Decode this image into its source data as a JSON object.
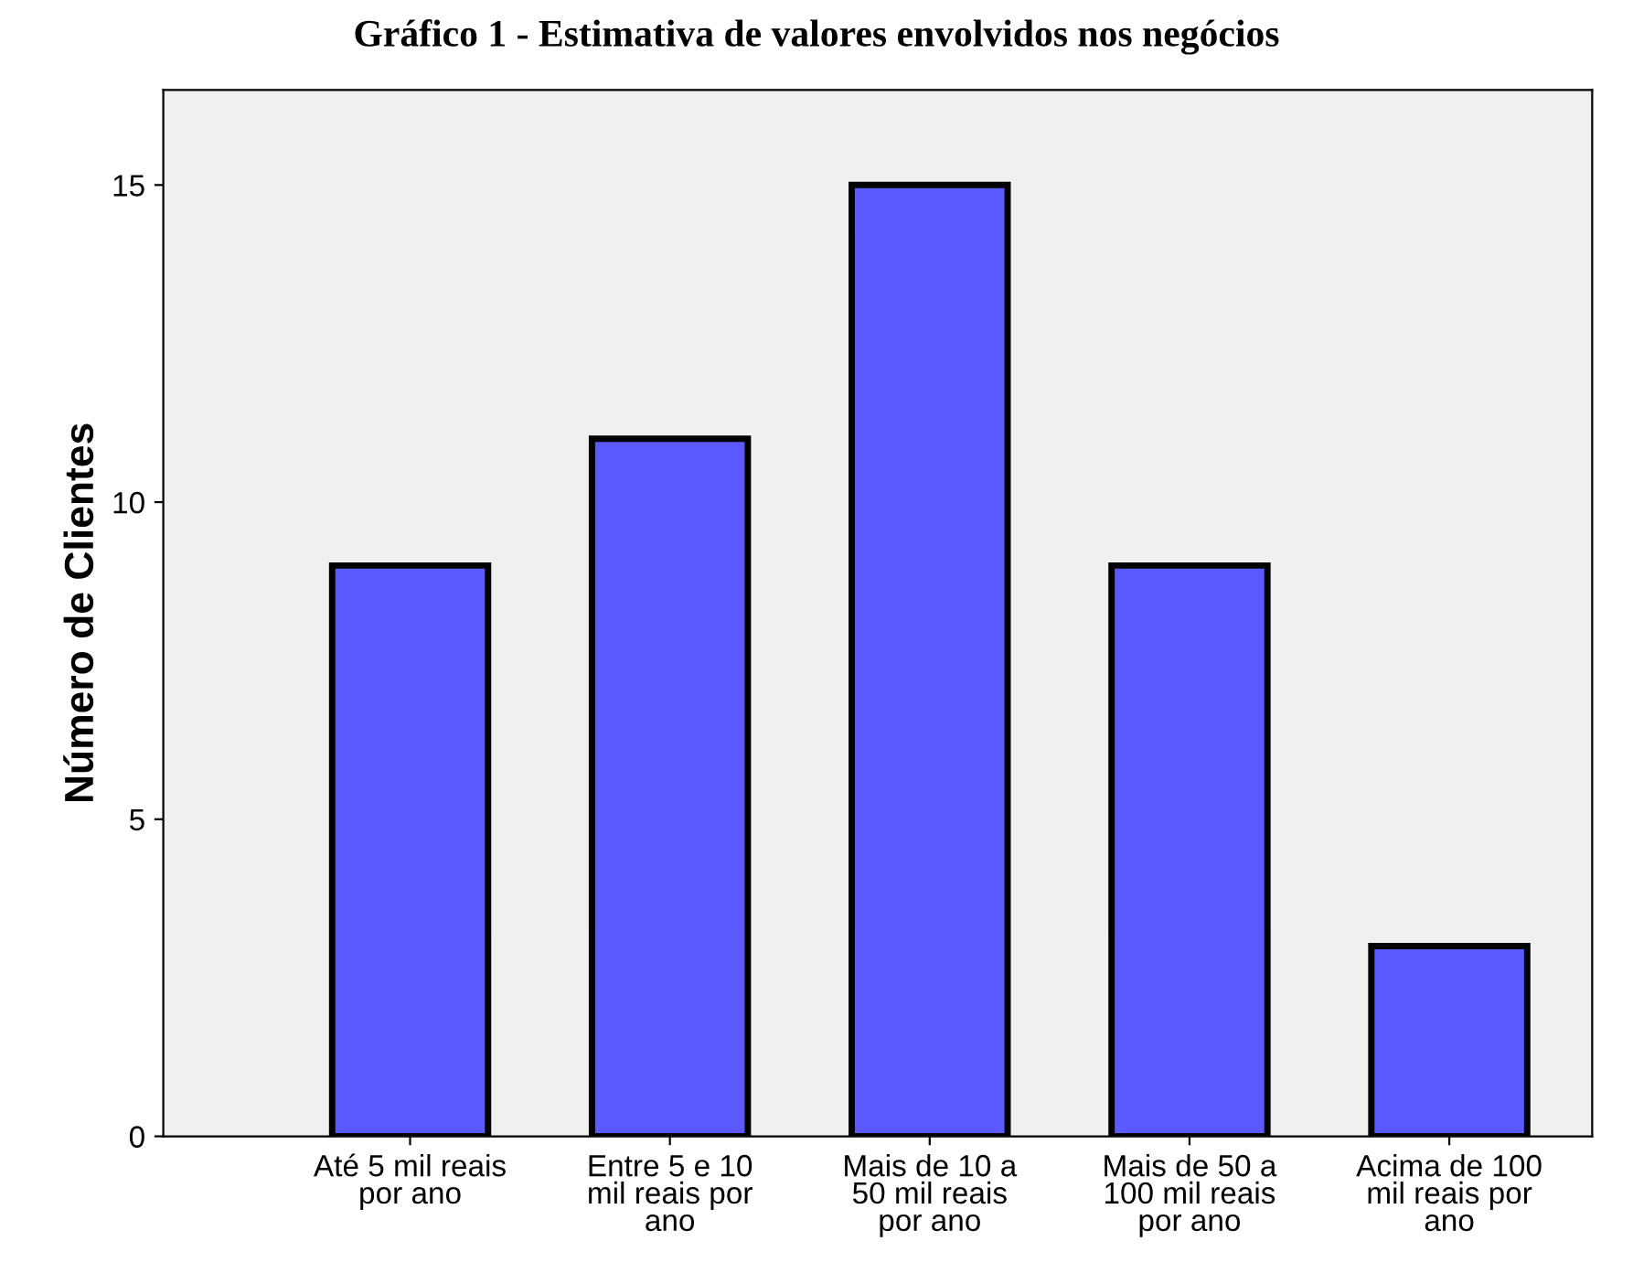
{
  "chart_data": {
    "type": "bar",
    "title": "Gráfico 1 - Estimativa de valores envolvidos nos negócios",
    "ylabel": "Número de Clientes",
    "categories": [
      "Até 5 mil reais\npor ano",
      "Entre 5 e 10\nmil reais por\nano",
      "Mais de 10 a\n50 mil reais\npor ano",
      "Mais de 50 a\n100 mil reais\npor ano",
      "Acima de 100\nmil reais por\nano"
    ],
    "values": [
      9,
      11,
      15,
      9,
      3
    ],
    "color": "#5a5aff",
    "ylim": [
      0,
      16.5
    ],
    "yticks": [
      0,
      5,
      10,
      15
    ],
    "grid": false,
    "legend": false
  }
}
